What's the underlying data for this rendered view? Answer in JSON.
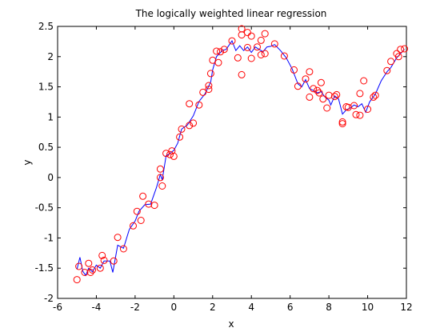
{
  "chart_data": {
    "type": "scatter",
    "title": "The logically weighted linear regression",
    "xlabel": "x",
    "ylabel": "y",
    "xlim": [
      -6,
      12
    ],
    "ylim": [
      -2,
      2.5
    ],
    "xticks": [
      -6,
      -4,
      -2,
      0,
      2,
      4,
      6,
      8,
      10,
      12
    ],
    "yticks": [
      -2,
      -1.5,
      -1,
      -0.5,
      0,
      0.5,
      1,
      1.5,
      2,
      2.5
    ],
    "xtick_labels": [
      "-6",
      "-4",
      "-2",
      "0",
      "2",
      "4",
      "6",
      "8",
      "10",
      "12"
    ],
    "ytick_labels": [
      "-2",
      "-1.5",
      "-1",
      "-0.5",
      "0",
      "0.5",
      "1",
      "1.5",
      "2",
      "2.5"
    ],
    "grid": false,
    "series": [
      {
        "kind": "scatter",
        "marker": "circle-open",
        "color": "#ff0000",
        "points": [
          [
            -5.0,
            -1.69
          ],
          [
            -4.9,
            -1.47
          ],
          [
            -4.6,
            -1.57
          ],
          [
            -4.4,
            -1.42
          ],
          [
            -4.3,
            -1.57
          ],
          [
            -4.2,
            -1.53
          ],
          [
            -3.8,
            -1.5
          ],
          [
            -3.7,
            -1.29
          ],
          [
            -3.6,
            -1.37
          ],
          [
            -3.1,
            -1.38
          ],
          [
            -2.9,
            -0.99
          ],
          [
            -2.6,
            -1.18
          ],
          [
            -2.1,
            -0.8
          ],
          [
            -1.9,
            -0.56
          ],
          [
            -1.6,
            -0.31
          ],
          [
            -1.7,
            -0.71
          ],
          [
            -1.3,
            -0.44
          ],
          [
            -1.0,
            -0.46
          ],
          [
            -0.7,
            0.14
          ],
          [
            -0.6,
            -0.14
          ],
          [
            -0.7,
            0.0
          ],
          [
            -0.4,
            0.4
          ],
          [
            -0.2,
            0.38
          ],
          [
            -0.1,
            0.44
          ],
          [
            0.0,
            0.35
          ],
          [
            0.3,
            0.67
          ],
          [
            0.4,
            0.8
          ],
          [
            0.8,
            1.22
          ],
          [
            0.8,
            0.86
          ],
          [
            1.0,
            0.9
          ],
          [
            1.3,
            1.2
          ],
          [
            1.5,
            1.41
          ],
          [
            1.8,
            1.46
          ],
          [
            1.8,
            1.52
          ],
          [
            1.9,
            1.72
          ],
          [
            2.0,
            1.94
          ],
          [
            2.2,
            2.09
          ],
          [
            2.3,
            1.9
          ],
          [
            2.4,
            2.08
          ],
          [
            2.6,
            2.12
          ],
          [
            3.0,
            2.26
          ],
          [
            3.3,
            1.98
          ],
          [
            3.5,
            2.46
          ],
          [
            3.5,
            2.36
          ],
          [
            3.5,
            1.7
          ],
          [
            3.8,
            2.15
          ],
          [
            3.8,
            2.4
          ],
          [
            4.0,
            1.97
          ],
          [
            4.0,
            2.34
          ],
          [
            4.3,
            2.16
          ],
          [
            4.5,
            2.27
          ],
          [
            4.5,
            2.03
          ],
          [
            4.7,
            2.38
          ],
          [
            4.7,
            2.05
          ],
          [
            5.2,
            2.21
          ],
          [
            5.7,
            2.01
          ],
          [
            6.2,
            1.78
          ],
          [
            6.4,
            1.51
          ],
          [
            6.8,
            1.63
          ],
          [
            7.0,
            1.75
          ],
          [
            7.0,
            1.33
          ],
          [
            7.2,
            1.47
          ],
          [
            7.4,
            1.44
          ],
          [
            7.5,
            1.4
          ],
          [
            7.6,
            1.57
          ],
          [
            7.7,
            1.3
          ],
          [
            7.9,
            1.15
          ],
          [
            8.0,
            1.36
          ],
          [
            8.3,
            1.34
          ],
          [
            8.4,
            1.37
          ],
          [
            8.7,
            0.92
          ],
          [
            8.7,
            0.89
          ],
          [
            8.9,
            1.17
          ],
          [
            9.0,
            1.16
          ],
          [
            9.3,
            1.19
          ],
          [
            9.4,
            1.04
          ],
          [
            9.6,
            1.39
          ],
          [
            9.6,
            1.03
          ],
          [
            9.8,
            1.6
          ],
          [
            10.0,
            1.13
          ],
          [
            10.3,
            1.33
          ],
          [
            10.4,
            1.36
          ],
          [
            11.0,
            1.77
          ],
          [
            11.2,
            1.92
          ],
          [
            11.5,
            2.05
          ],
          [
            11.6,
            2.0
          ],
          [
            11.7,
            2.12
          ],
          [
            11.9,
            2.13
          ]
        ]
      },
      {
        "kind": "line",
        "color": "#0000ff",
        "points": [
          [
            -5.0,
            -1.52
          ],
          [
            -4.85,
            -1.32
          ],
          [
            -4.7,
            -1.55
          ],
          [
            -4.55,
            -1.62
          ],
          [
            -4.4,
            -1.5
          ],
          [
            -4.2,
            -1.56
          ],
          [
            -4.0,
            -1.45
          ],
          [
            -3.8,
            -1.5
          ],
          [
            -3.6,
            -1.38
          ],
          [
            -3.3,
            -1.38
          ],
          [
            -3.15,
            -1.57
          ],
          [
            -2.9,
            -1.12
          ],
          [
            -2.6,
            -1.17
          ],
          [
            -2.3,
            -0.86
          ],
          [
            -2.0,
            -0.72
          ],
          [
            -1.8,
            -0.56
          ],
          [
            -1.5,
            -0.45
          ],
          [
            -1.2,
            -0.44
          ],
          [
            -0.9,
            -0.17
          ],
          [
            -0.7,
            0.05
          ],
          [
            -0.6,
            -0.04
          ],
          [
            -0.4,
            0.36
          ],
          [
            -0.2,
            0.4
          ],
          [
            0.0,
            0.45
          ],
          [
            0.2,
            0.57
          ],
          [
            0.4,
            0.8
          ],
          [
            0.7,
            0.87
          ],
          [
            1.0,
            1.02
          ],
          [
            1.3,
            1.26
          ],
          [
            1.6,
            1.38
          ],
          [
            1.9,
            1.58
          ],
          [
            2.0,
            1.78
          ],
          [
            2.2,
            2.0
          ],
          [
            2.5,
            2.1
          ],
          [
            2.7,
            2.12
          ],
          [
            3.0,
            2.26
          ],
          [
            3.2,
            2.1
          ],
          [
            3.4,
            2.18
          ],
          [
            3.6,
            2.1
          ],
          [
            3.8,
            2.16
          ],
          [
            4.0,
            2.07
          ],
          [
            4.2,
            2.16
          ],
          [
            4.4,
            2.12
          ],
          [
            4.6,
            2.08
          ],
          [
            4.8,
            2.16
          ],
          [
            5.0,
            2.17
          ],
          [
            5.2,
            2.2
          ],
          [
            5.5,
            2.1
          ],
          [
            5.8,
            1.98
          ],
          [
            6.1,
            1.8
          ],
          [
            6.4,
            1.55
          ],
          [
            6.6,
            1.5
          ],
          [
            6.8,
            1.62
          ],
          [
            7.0,
            1.47
          ],
          [
            7.2,
            1.44
          ],
          [
            7.4,
            1.4
          ],
          [
            7.6,
            1.42
          ],
          [
            7.8,
            1.33
          ],
          [
            8.0,
            1.28
          ],
          [
            8.1,
            1.2
          ],
          [
            8.3,
            1.35
          ],
          [
            8.5,
            1.3
          ],
          [
            8.7,
            1.05
          ],
          [
            8.9,
            1.12
          ],
          [
            9.1,
            1.15
          ],
          [
            9.3,
            1.2
          ],
          [
            9.5,
            1.17
          ],
          [
            9.7,
            1.22
          ],
          [
            9.9,
            1.08
          ],
          [
            10.1,
            1.25
          ],
          [
            10.4,
            1.38
          ],
          [
            10.7,
            1.6
          ],
          [
            11.0,
            1.75
          ],
          [
            11.2,
            1.82
          ],
          [
            11.5,
            1.98
          ],
          [
            11.7,
            2.05
          ],
          [
            11.9,
            2.12
          ]
        ]
      }
    ]
  }
}
